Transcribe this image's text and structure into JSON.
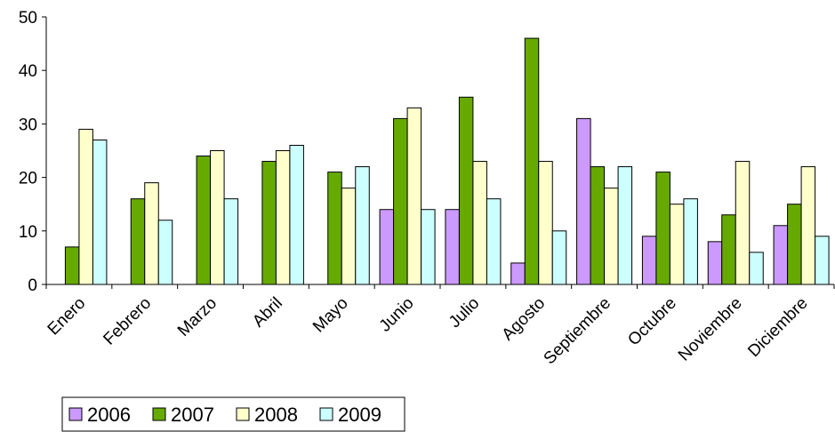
{
  "chart_data": {
    "type": "bar",
    "categories": [
      "Enero",
      "Febrero",
      "Marzo",
      "Abril",
      "Mayo",
      "Junio",
      "Julio",
      "Agosto",
      "Septiembre",
      "Octubre",
      "Noviembre",
      "Diciembre"
    ],
    "series": [
      {
        "name": "2006",
        "color": "#cc99ff",
        "values": [
          0,
          0,
          0,
          0,
          0,
          14,
          14,
          4,
          31,
          9,
          8,
          11
        ]
      },
      {
        "name": "2007",
        "color": "#66aa00",
        "values": [
          7,
          16,
          24,
          23,
          21,
          31,
          35,
          46,
          22,
          21,
          13,
          15
        ]
      },
      {
        "name": "2008",
        "color": "#ffffcc",
        "values": [
          29,
          19,
          25,
          25,
          18,
          33,
          23,
          23,
          18,
          15,
          23,
          22
        ]
      },
      {
        "name": "2009",
        "color": "#ccffff",
        "values": [
          27,
          12,
          16,
          26,
          22,
          14,
          16,
          10,
          22,
          16,
          6,
          9
        ]
      }
    ],
    "ylim": [
      0,
      50
    ],
    "yticks": [
      0,
      10,
      20,
      30,
      40,
      50
    ],
    "grid": false,
    "legend": "bottom-left"
  }
}
